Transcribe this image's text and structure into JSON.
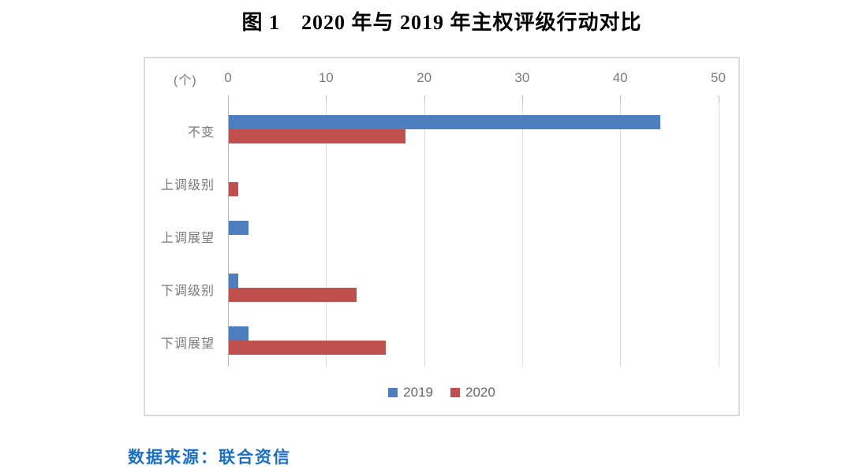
{
  "title": "图 1　2020 年与 2019 年主权评级行动对比",
  "source_note": "数据来源：联合资信",
  "colors": {
    "bar_2019": "#4e7ebd",
    "bar_2020": "#c0504d",
    "source_text": "#1b6fc6"
  },
  "chart_data": {
    "type": "bar",
    "orientation": "horizontal",
    "title": "图 1　2020 年与 2019 年主权评级行动对比",
    "unit_label": "(个)",
    "categories": [
      "不变",
      "上调级别",
      "上调展望",
      "下调级别",
      "下调展望"
    ],
    "series": [
      {
        "name": "2019",
        "color": "#4e7ebd",
        "values": [
          44,
          0,
          2,
          1,
          2
        ]
      },
      {
        "name": "2020",
        "color": "#c0504d",
        "values": [
          18,
          1,
          0,
          13,
          16
        ]
      }
    ],
    "xlim": [
      0,
      50
    ],
    "xticks": [
      0,
      10,
      20,
      30,
      40,
      50
    ],
    "grid": true,
    "legend_position": "bottom"
  }
}
